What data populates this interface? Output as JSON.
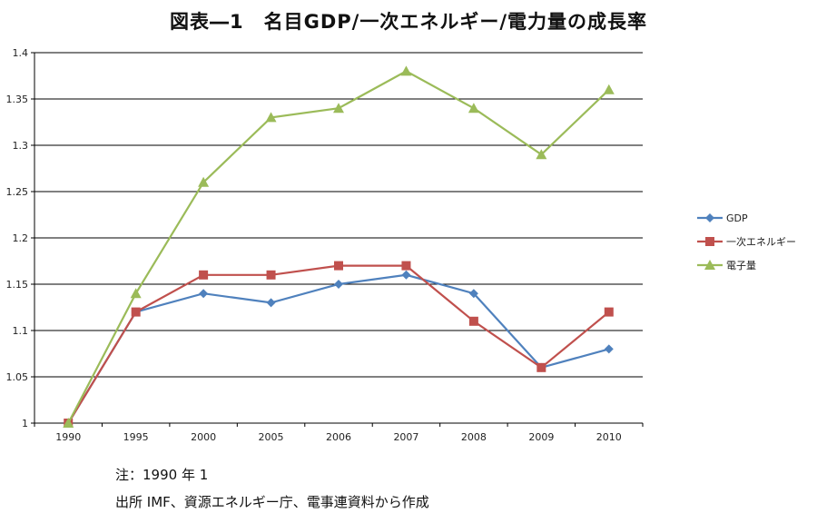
{
  "chart_data": {
    "type": "line",
    "title": "図表―1　名目GDP/一次エネルギー/電力量の成長率",
    "categories": [
      "1990",
      "1995",
      "2000",
      "2005",
      "2006",
      "2007",
      "2008",
      "2009",
      "2010"
    ],
    "ylim": [
      1,
      1.4
    ],
    "yticks": [
      "1",
      "1.05",
      "1.1",
      "1.15",
      "1.2",
      "1.25",
      "1.3",
      "1.35",
      "1.4"
    ],
    "grid": true,
    "legend_position": "right",
    "series": [
      {
        "name": "GDP",
        "color": "#4F81BD",
        "marker": "diamond",
        "values": [
          1.0,
          1.12,
          1.14,
          1.13,
          1.15,
          1.16,
          1.14,
          1.06,
          1.08
        ]
      },
      {
        "name": "一次エネルギー",
        "color": "#C0504D",
        "marker": "square",
        "values": [
          1.0,
          1.12,
          1.16,
          1.16,
          1.17,
          1.17,
          1.11,
          1.06,
          1.12
        ]
      },
      {
        "name": "電子量",
        "color": "#9BBB59",
        "marker": "triangle",
        "values": [
          1.0,
          1.14,
          1.26,
          1.33,
          1.34,
          1.38,
          1.34,
          1.29,
          1.36
        ]
      }
    ]
  },
  "notes": {
    "line1": "注：1990 年 1",
    "line2": "出所 IMF、資源エネルギー庁、電事連資料から作成"
  }
}
